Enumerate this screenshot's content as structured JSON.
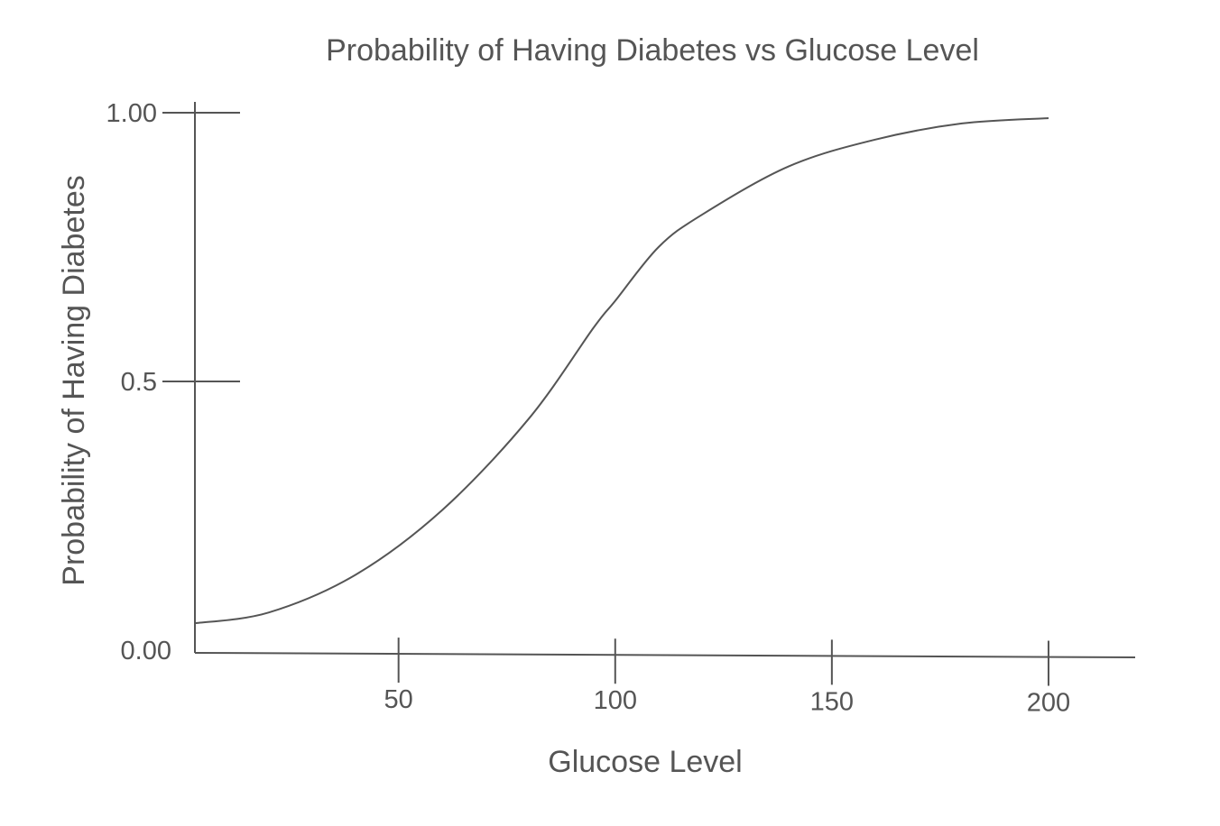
{
  "chart_data": {
    "type": "line",
    "title": "Probability of Having Diabetes vs Glucose Level",
    "xlabel": "Glucose Level",
    "ylabel": "Probability of Having Diabetes",
    "xlim": [
      3,
      220
    ],
    "ylim": [
      0,
      1
    ],
    "x_ticks": [
      {
        "value": 50,
        "label": "50"
      },
      {
        "value": 100,
        "label": "100"
      },
      {
        "value": 150,
        "label": "150"
      },
      {
        "value": 200,
        "label": "200"
      }
    ],
    "y_ticks": [
      {
        "value": 0,
        "label": "0.00"
      },
      {
        "value": 0.5,
        "label": "0.5"
      },
      {
        "value": 1,
        "label": "1.00"
      }
    ],
    "grid": false,
    "legend": "none",
    "series": [
      {
        "x": [
          3,
          20,
          40,
          60,
          80,
          95,
          100,
          110,
          120,
          140,
          160,
          180,
          200
        ],
        "y": [
          0.05,
          0.07,
          0.14,
          0.26,
          0.43,
          0.6,
          0.65,
          0.75,
          0.81,
          0.9,
          0.95,
          0.98,
          0.99
        ]
      }
    ]
  }
}
